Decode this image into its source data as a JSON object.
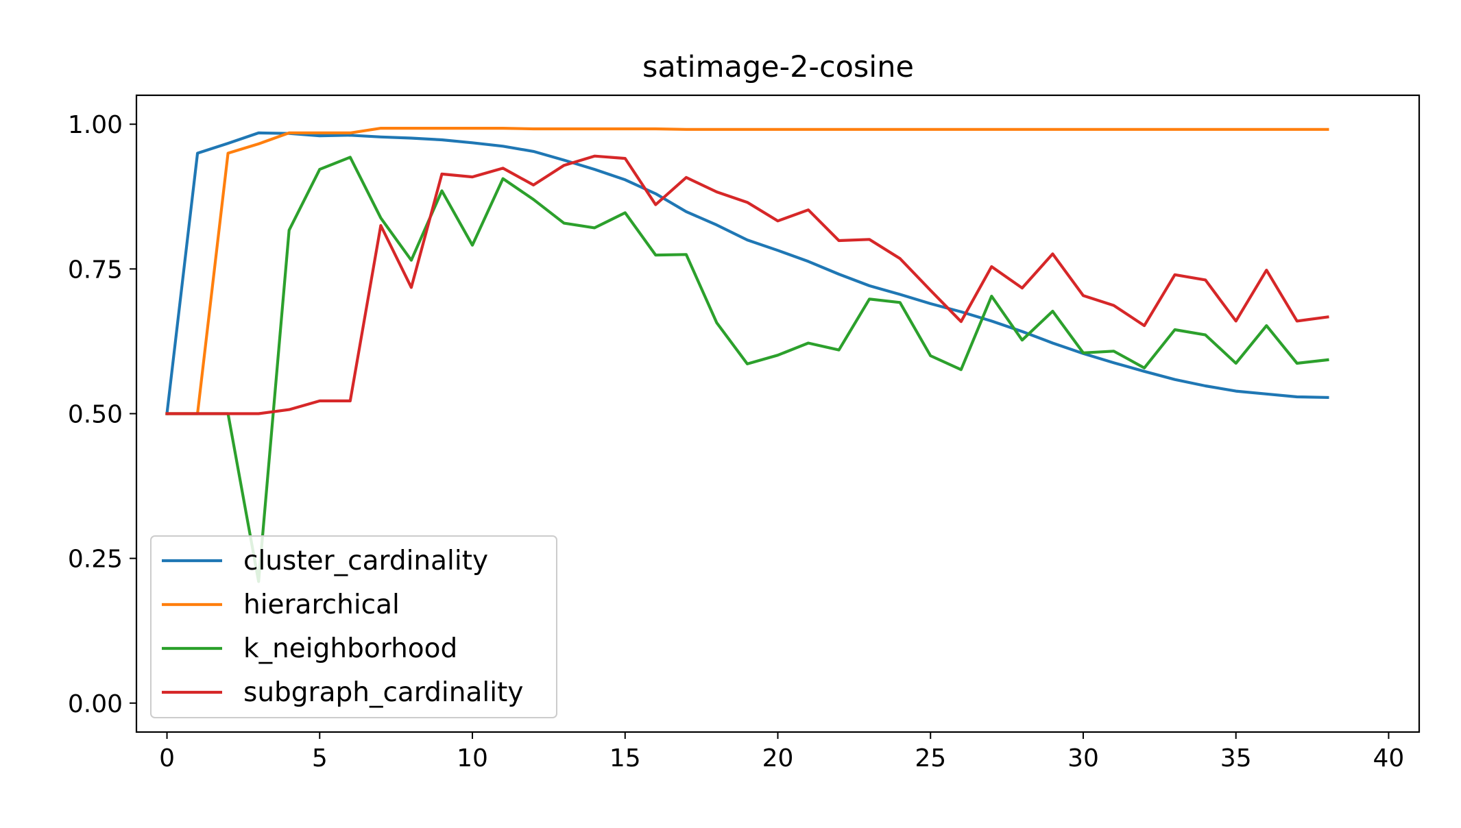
{
  "chart_data": {
    "type": "line",
    "title": "satimage-2-cosine",
    "xlabel": "",
    "ylabel": "",
    "xlim": [
      -1,
      41
    ],
    "ylim": [
      -0.05,
      1.05
    ],
    "xticks": [
      0,
      5,
      10,
      15,
      20,
      25,
      30,
      35,
      40
    ],
    "yticks": [
      0.0,
      0.25,
      0.5,
      0.75,
      1.0
    ],
    "xtick_labels": [
      "0",
      "5",
      "10",
      "15",
      "20",
      "25",
      "30",
      "35",
      "40"
    ],
    "ytick_labels": [
      "0.00",
      "0.25",
      "0.50",
      "0.75",
      "1.00"
    ],
    "grid": false,
    "legend_position": "lower-left",
    "series": [
      {
        "name": "cluster_cardinality",
        "color": "#1f77b4",
        "values": [
          0.5,
          0.95,
          0.967,
          0.985,
          0.984,
          0.98,
          0.981,
          0.978,
          0.976,
          0.973,
          0.968,
          0.962,
          0.953,
          0.938,
          0.922,
          0.904,
          0.88,
          0.849,
          0.826,
          0.8,
          0.782,
          0.763,
          0.741,
          0.721,
          0.706,
          0.69,
          0.676,
          0.66,
          0.642,
          0.622,
          0.604,
          0.588,
          0.573,
          0.559,
          0.548,
          0.539,
          0.534,
          0.529,
          0.528
        ]
      },
      {
        "name": "hierarchical",
        "color": "#ff7f0e",
        "values": [
          0.5,
          0.5,
          0.95,
          0.966,
          0.985,
          0.985,
          0.985,
          0.993,
          0.993,
          0.993,
          0.993,
          0.993,
          0.992,
          0.992,
          0.992,
          0.992,
          0.992,
          0.991,
          0.991,
          0.991,
          0.991,
          0.991,
          0.991,
          0.991,
          0.991,
          0.991,
          0.991,
          0.991,
          0.991,
          0.991,
          0.991,
          0.991,
          0.991,
          0.991,
          0.991,
          0.991,
          0.991,
          0.991,
          0.991
        ]
      },
      {
        "name": "k_neighborhood",
        "color": "#2ca02c",
        "values": [
          0.5,
          0.5,
          0.5,
          0.21,
          0.817,
          0.922,
          0.943,
          0.838,
          0.765,
          0.885,
          0.791,
          0.906,
          0.87,
          0.829,
          0.821,
          0.847,
          0.774,
          0.775,
          0.657,
          0.586,
          0.601,
          0.622,
          0.61,
          0.698,
          0.692,
          0.6,
          0.576,
          0.703,
          0.627,
          0.677,
          0.605,
          0.608,
          0.579,
          0.645,
          0.636,
          0.587,
          0.652,
          0.587,
          0.593
        ]
      },
      {
        "name": "subgraph_cardinality",
        "color": "#d62728",
        "values": [
          0.5,
          0.5,
          0.5,
          0.5,
          0.507,
          0.522,
          0.522,
          0.825,
          0.718,
          0.914,
          0.909,
          0.924,
          0.895,
          0.929,
          0.945,
          0.941,
          0.861,
          0.908,
          0.883,
          0.865,
          0.833,
          0.852,
          0.799,
          0.801,
          0.768,
          0.713,
          0.659,
          0.754,
          0.717,
          0.776,
          0.704,
          0.687,
          0.652,
          0.74,
          0.731,
          0.66,
          0.748,
          0.66,
          0.667
        ]
      }
    ]
  }
}
